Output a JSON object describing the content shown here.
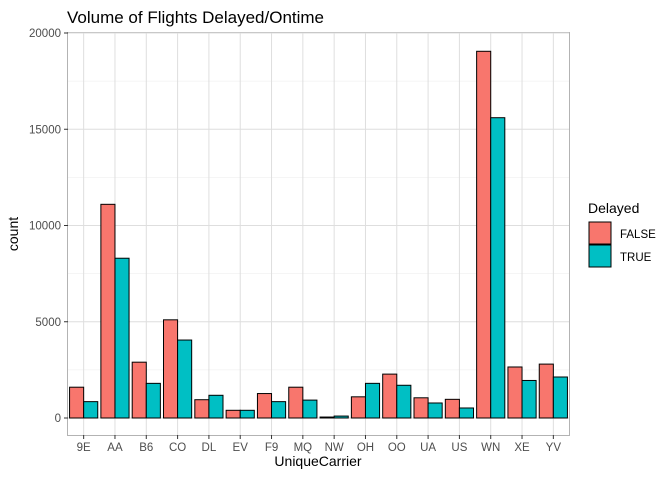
{
  "chart_data": {
    "type": "bar",
    "title": "Volume of Flights Delayed/Ontime",
    "xlabel": "UniqueCarrier",
    "ylabel": "count",
    "ylim": [
      -800,
      20000
    ],
    "yticks": [
      0,
      5000,
      10000,
      15000,
      20000
    ],
    "grid": true,
    "legend_position": "right",
    "legend_title": "Delayed",
    "categories": [
      "9E",
      "AA",
      "B6",
      "CO",
      "DL",
      "EV",
      "F9",
      "MQ",
      "NW",
      "OH",
      "OO",
      "UA",
      "US",
      "WN",
      "XE",
      "YV"
    ],
    "series": [
      {
        "name": "FALSE",
        "color": "#F8766D",
        "values": [
          1600,
          11100,
          2900,
          5100,
          950,
          400,
          1270,
          1600,
          50,
          1100,
          2280,
          1050,
          970,
          19050,
          2650,
          2800
        ]
      },
      {
        "name": "TRUE",
        "color": "#00BFC4",
        "values": [
          850,
          8300,
          1800,
          4050,
          1180,
          400,
          850,
          930,
          100,
          1800,
          1700,
          780,
          520,
          15600,
          1950,
          2130
        ]
      }
    ]
  }
}
